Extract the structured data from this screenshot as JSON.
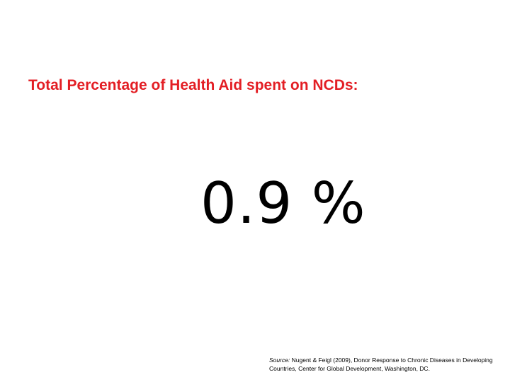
{
  "slide": {
    "title": "Total Percentage of Health Aid spent on NCDs:",
    "value": "0.9 %",
    "source_label": "Source:",
    "source_text": "Nugent & Feigl (2009), Donor Response to Chronic Diseases in Developing Countries, Center for Global Development, Washington, DC."
  },
  "colors": {
    "title": "#e31e24",
    "background": "#ffffff",
    "text": "#000000"
  }
}
